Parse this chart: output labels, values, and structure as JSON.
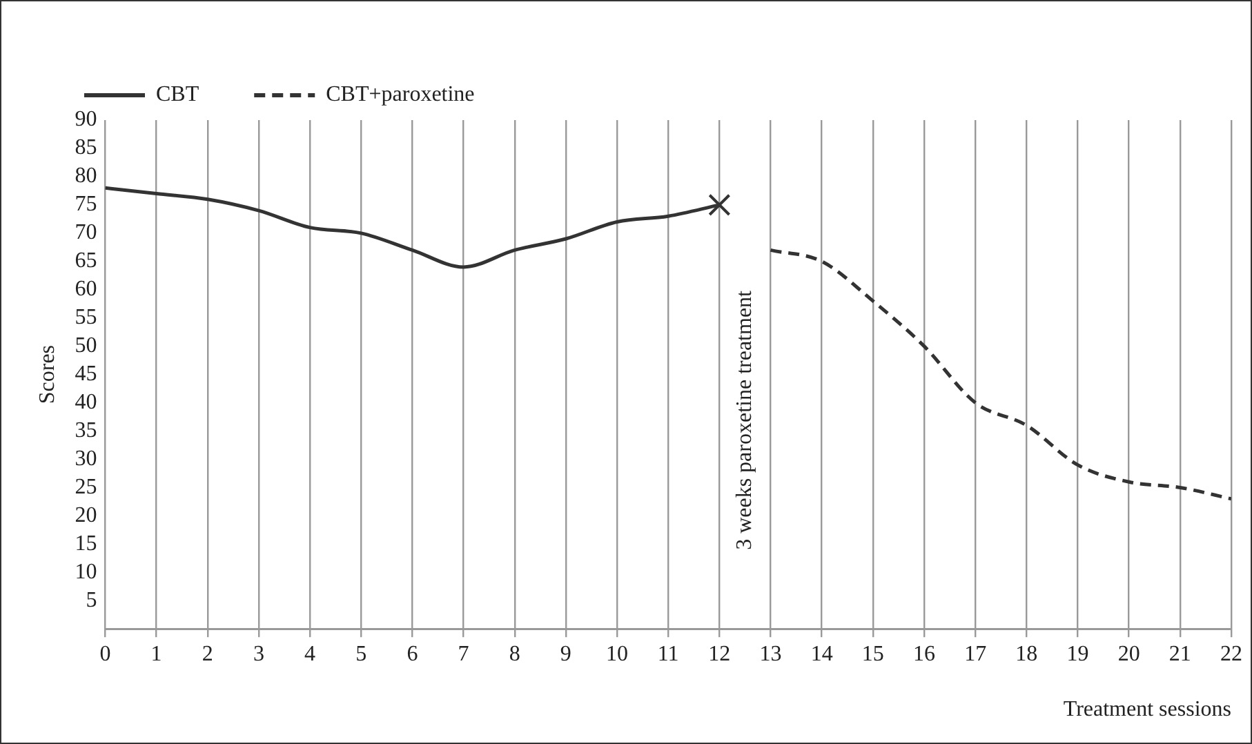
{
  "chart_data": {
    "type": "line",
    "xlabel": "Treatment sessions",
    "ylabel": "Scores",
    "series": [
      {
        "name": "CBT",
        "color": "#333333",
        "line_style": "solid",
        "x": [
          0,
          1,
          2,
          3,
          4,
          5,
          6,
          7,
          8,
          9,
          10,
          11,
          12
        ],
        "values": [
          78,
          77,
          76,
          74,
          71,
          70,
          67,
          64,
          67,
          69,
          72,
          73,
          75
        ]
      },
      {
        "name": "CBT+paroxetine",
        "color": "#333333",
        "line_style": "dashed",
        "x": [
          13,
          14,
          15,
          16,
          17,
          18,
          19,
          20,
          21,
          22
        ],
        "values": [
          67,
          65,
          58,
          50,
          40,
          36,
          29,
          26,
          25,
          23
        ]
      },
      {
        "type": "scatter",
        "color": "#333333",
        "marker": "cross",
        "x": [
          12
        ],
        "values": [
          75
        ]
      }
    ],
    "xlim": [
      0,
      22
    ],
    "xticks": [
      0,
      1,
      2,
      3,
      4,
      5,
      6,
      7,
      8,
      9,
      10,
      11,
      12,
      13,
      14,
      15,
      16,
      17,
      18,
      19,
      20,
      21,
      22
    ],
    "ylim": [
      0,
      90
    ],
    "yticks": [
      5,
      10,
      15,
      20,
      25,
      30,
      35,
      40,
      45,
      50,
      55,
      60,
      65,
      70,
      75,
      80,
      85,
      90
    ],
    "grid": "x",
    "legend": "top left",
    "marker": "none",
    "annotations": [
      "3 weeks paroxetine treatment"
    ]
  }
}
